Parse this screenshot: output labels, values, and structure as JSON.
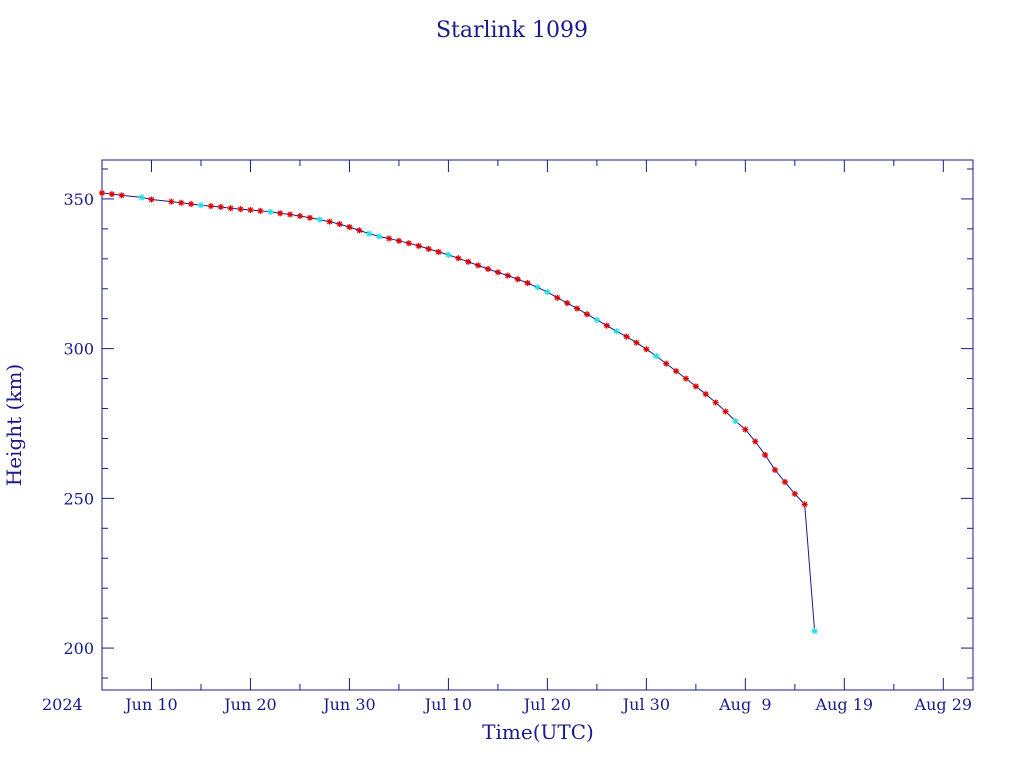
{
  "chart_data": {
    "type": "line",
    "title": "Starlink 1099",
    "xlabel": "Time(UTC)",
    "ylabel": "Height (km)",
    "x_axis": {
      "scale": "date",
      "range": [
        "2024-06-05",
        "2024-09-01"
      ],
      "year_label": "2024",
      "ticks": [
        {
          "date": "2024-06-10",
          "label": "Jun 10"
        },
        {
          "date": "2024-06-20",
          "label": "Jun 20"
        },
        {
          "date": "2024-06-30",
          "label": "Jun 30"
        },
        {
          "date": "2024-07-10",
          "label": "Jul 10"
        },
        {
          "date": "2024-07-20",
          "label": "Jul 20"
        },
        {
          "date": "2024-07-30",
          "label": "Jul 30"
        },
        {
          "date": "2024-08-09",
          "label": "Aug  9"
        },
        {
          "date": "2024-08-19",
          "label": "Aug 19"
        },
        {
          "date": "2024-08-29",
          "label": "Aug 29"
        }
      ]
    },
    "y_axis": {
      "range": [
        186,
        363
      ],
      "ticks": [
        200,
        250,
        300,
        350
      ]
    },
    "grid": false,
    "colors": {
      "frame": "#1a1a8c",
      "line": "#1a1a8c",
      "marker_red": "#dd0000",
      "marker_cyan": "#22e0e8"
    },
    "series": [
      {
        "values": [
          {
            "date": "2024-06-05",
            "height": 352.0,
            "marker": "red"
          },
          {
            "date": "2024-06-06",
            "height": 351.6,
            "marker": "red"
          },
          {
            "date": "2024-06-07",
            "height": 351.2,
            "marker": "red"
          },
          {
            "date": "2024-06-09",
            "height": 350.5,
            "marker": "cyan"
          },
          {
            "date": "2024-06-10",
            "height": 349.8,
            "marker": "red"
          },
          {
            "date": "2024-06-12",
            "height": 349.1,
            "marker": "red"
          },
          {
            "date": "2024-06-13",
            "height": 348.7,
            "marker": "red"
          },
          {
            "date": "2024-06-14",
            "height": 348.3,
            "marker": "red"
          },
          {
            "date": "2024-06-15",
            "height": 347.9,
            "marker": "cyan"
          },
          {
            "date": "2024-06-16",
            "height": 347.6,
            "marker": "red"
          },
          {
            "date": "2024-06-17",
            "height": 347.3,
            "marker": "red"
          },
          {
            "date": "2024-06-18",
            "height": 346.9,
            "marker": "red"
          },
          {
            "date": "2024-06-19",
            "height": 346.6,
            "marker": "red"
          },
          {
            "date": "2024-06-20",
            "height": 346.3,
            "marker": "red"
          },
          {
            "date": "2024-06-21",
            "height": 346.0,
            "marker": "red"
          },
          {
            "date": "2024-06-22",
            "height": 345.7,
            "marker": "cyan"
          },
          {
            "date": "2024-06-23",
            "height": 345.2,
            "marker": "red"
          },
          {
            "date": "2024-06-24",
            "height": 344.8,
            "marker": "red"
          },
          {
            "date": "2024-06-25",
            "height": 344.3,
            "marker": "red"
          },
          {
            "date": "2024-06-26",
            "height": 343.7,
            "marker": "red"
          },
          {
            "date": "2024-06-27",
            "height": 343.1,
            "marker": "cyan"
          },
          {
            "date": "2024-06-28",
            "height": 342.4,
            "marker": "red"
          },
          {
            "date": "2024-06-29",
            "height": 341.6,
            "marker": "red"
          },
          {
            "date": "2024-06-30",
            "height": 340.6,
            "marker": "red"
          },
          {
            "date": "2024-07-01",
            "height": 339.5,
            "marker": "red"
          },
          {
            "date": "2024-07-02",
            "height": 338.4,
            "marker": "cyan"
          },
          {
            "date": "2024-07-03",
            "height": 337.5,
            "marker": "cyan"
          },
          {
            "date": "2024-07-04",
            "height": 336.8,
            "marker": "red"
          },
          {
            "date": "2024-07-05",
            "height": 336.0,
            "marker": "red"
          },
          {
            "date": "2024-07-06",
            "height": 335.2,
            "marker": "red"
          },
          {
            "date": "2024-07-07",
            "height": 334.3,
            "marker": "red"
          },
          {
            "date": "2024-07-08",
            "height": 333.3,
            "marker": "red"
          },
          {
            "date": "2024-07-09",
            "height": 332.3,
            "marker": "red"
          },
          {
            "date": "2024-07-10",
            "height": 331.3,
            "marker": "cyan"
          },
          {
            "date": "2024-07-11",
            "height": 330.2,
            "marker": "red"
          },
          {
            "date": "2024-07-12",
            "height": 329.0,
            "marker": "red"
          },
          {
            "date": "2024-07-13",
            "height": 327.8,
            "marker": "red"
          },
          {
            "date": "2024-07-14",
            "height": 326.6,
            "marker": "red"
          },
          {
            "date": "2024-07-15",
            "height": 325.5,
            "marker": "red"
          },
          {
            "date": "2024-07-16",
            "height": 324.4,
            "marker": "red"
          },
          {
            "date": "2024-07-17",
            "height": 323.2,
            "marker": "red"
          },
          {
            "date": "2024-07-18",
            "height": 321.9,
            "marker": "red"
          },
          {
            "date": "2024-07-19",
            "height": 320.5,
            "marker": "cyan"
          },
          {
            "date": "2024-07-20",
            "height": 318.9,
            "marker": "cyan"
          },
          {
            "date": "2024-07-21",
            "height": 317.0,
            "marker": "red"
          },
          {
            "date": "2024-07-22",
            "height": 315.2,
            "marker": "red"
          },
          {
            "date": "2024-07-23",
            "height": 313.4,
            "marker": "red"
          },
          {
            "date": "2024-07-24",
            "height": 311.5,
            "marker": "red"
          },
          {
            "date": "2024-07-25",
            "height": 309.6,
            "marker": "cyan"
          },
          {
            "date": "2024-07-26",
            "height": 307.7,
            "marker": "red"
          },
          {
            "date": "2024-07-27",
            "height": 305.8,
            "marker": "cyan"
          },
          {
            "date": "2024-07-28",
            "height": 304.0,
            "marker": "red"
          },
          {
            "date": "2024-07-29",
            "height": 302.0,
            "marker": "red"
          },
          {
            "date": "2024-07-30",
            "height": 299.8,
            "marker": "red"
          },
          {
            "date": "2024-07-31",
            "height": 297.5,
            "marker": "cyan"
          },
          {
            "date": "2024-08-01",
            "height": 295.0,
            "marker": "red"
          },
          {
            "date": "2024-08-02",
            "height": 292.5,
            "marker": "red"
          },
          {
            "date": "2024-08-03",
            "height": 290.0,
            "marker": "red"
          },
          {
            "date": "2024-08-04",
            "height": 287.4,
            "marker": "red"
          },
          {
            "date": "2024-08-05",
            "height": 284.8,
            "marker": "red"
          },
          {
            "date": "2024-08-06",
            "height": 282.0,
            "marker": "red"
          },
          {
            "date": "2024-08-07",
            "height": 279.0,
            "marker": "red"
          },
          {
            "date": "2024-08-08",
            "height": 275.8,
            "marker": "cyan"
          },
          {
            "date": "2024-08-09",
            "height": 273.0,
            "marker": "red"
          },
          {
            "date": "2024-08-10",
            "height": 269.0,
            "marker": "red"
          },
          {
            "date": "2024-08-11",
            "height": 264.5,
            "marker": "red"
          },
          {
            "date": "2024-08-12",
            "height": 259.5,
            "marker": "red"
          },
          {
            "date": "2024-08-13",
            "height": 255.5,
            "marker": "red"
          },
          {
            "date": "2024-08-14",
            "height": 251.5,
            "marker": "red"
          },
          {
            "date": "2024-08-15",
            "height": 248.0,
            "marker": "red"
          },
          {
            "date": "2024-08-16",
            "height": 205.7,
            "marker": "cyan"
          }
        ]
      }
    ]
  }
}
